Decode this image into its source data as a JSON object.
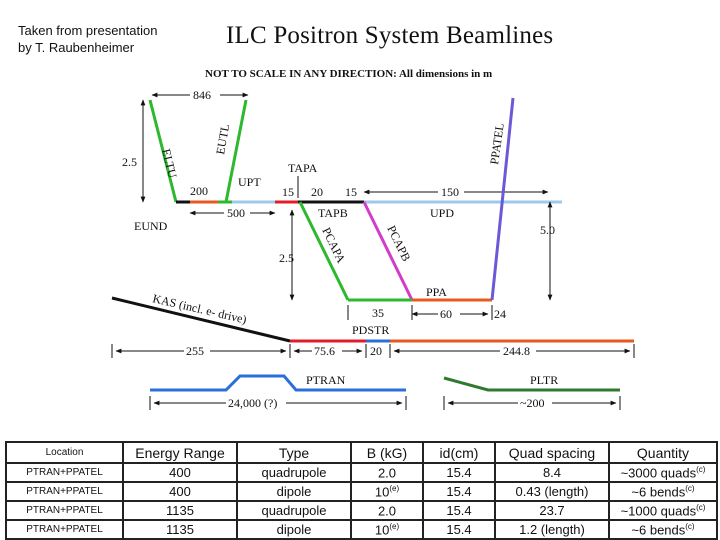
{
  "caption": "Taken from presentation\nby T. Raubenheimer",
  "title": "ILC Positron System Beamlines",
  "scale_note": "NOT TO SCALE IN ANY DIRECTION: All dimensions in m",
  "labels": {
    "eltu": "ELTU",
    "eutl": "EUTL",
    "upt": "UPT",
    "eund": "EUND",
    "tapa": "TAPA",
    "tapb": "TAPB",
    "upd": "UPD",
    "pcapa": "PCAPA",
    "pcapb": "PCAPB",
    "ppa": "PPA",
    "ppatel": "PPATEL",
    "pdstr": "PDSTR",
    "kas": "KAS (incl. e- drive)",
    "ptran": "PTRAN",
    "pltr": "PLTR"
  },
  "dims": {
    "d846": "846",
    "d2_5_top": "2.5",
    "d200": "200",
    "d500": "500",
    "d15a": "15",
    "d20": "20",
    "d15b": "15",
    "d150": "150",
    "d5_0": "5.0",
    "d2_5_mid": "2.5",
    "d35": "35",
    "d60": "60",
    "d24": "24",
    "d255": "255",
    "d75_6": "75.6",
    "d20b": "20",
    "d244_8": "244.8",
    "d24000": "24,000 (?)",
    "d200b": "~200"
  },
  "colors": {
    "green": "#2db82d",
    "black": "#111111",
    "orange": "#e8591f",
    "light_blue": "#9ec9ea",
    "red": "#e11d2a",
    "magenta": "#d23cc8",
    "purple": "#6a5ad6",
    "blue": "#2a6fd8",
    "dark_green": "#2f7a2f"
  },
  "table": {
    "headers": [
      "Location",
      "Energy Range",
      "Type",
      "B (kG)",
      "id(cm)",
      "Quad spacing",
      "Quantity"
    ],
    "rows": [
      {
        "location": "PTRAN+PPATEL",
        "energy": "400",
        "type": "quadrupole",
        "b": "2.0",
        "b_sup": "",
        "id": "15.4",
        "spacing": "8.4",
        "quantity": "~3000 quads",
        "q_sup": "(c)"
      },
      {
        "location": "PTRAN+PPATEL",
        "energy": "400",
        "type": "dipole",
        "b": "10",
        "b_sup": "(e)",
        "id": "15.4",
        "spacing": "0.43 (length)",
        "quantity": "~6 bends",
        "q_sup": "(c)"
      },
      {
        "location": "PTRAN+PPATEL",
        "energy": "1135",
        "type": "quadrupole",
        "b": "2.0",
        "b_sup": "",
        "id": "15.4",
        "spacing": "23.7",
        "quantity": "~1000 quads",
        "q_sup": "(c)"
      },
      {
        "location": "PTRAN+PPATEL",
        "energy": "1135",
        "type": "dipole",
        "b": "10",
        "b_sup": "(e)",
        "id": "15.4",
        "spacing": "1.2 (length)",
        "quantity": "~6 bends",
        "q_sup": "(c)"
      }
    ]
  }
}
